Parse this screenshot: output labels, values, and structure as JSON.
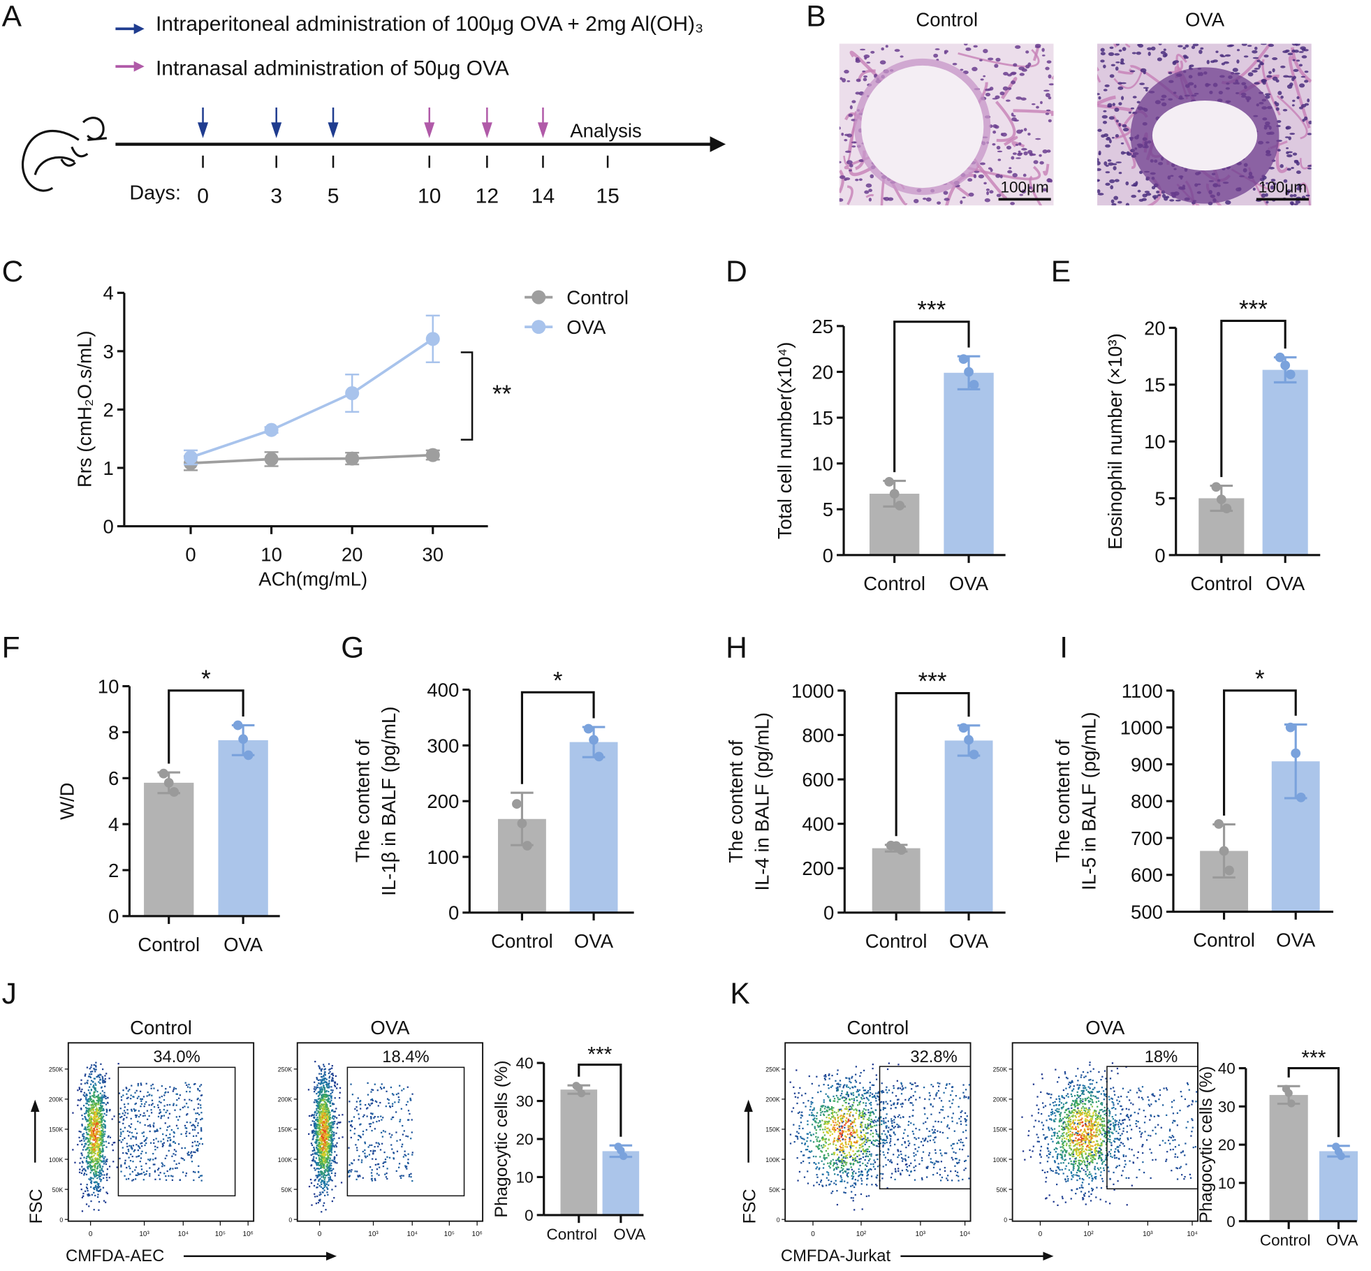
{
  "panel_labels": [
    "A",
    "B",
    "C",
    "D",
    "E",
    "F",
    "G",
    "H",
    "I",
    "J",
    "K"
  ],
  "timeline": {
    "legend_ip": "Intraperitoneal administration of 100μg OVA + 2mg Al(OH)₃",
    "legend_in": "Intranasal administration of 50μg OVA",
    "days_label": "Days:",
    "days": [
      "0",
      "3",
      "5",
      "10",
      "12",
      "14",
      "15"
    ],
    "analysis": "Analysis",
    "ip_color": "#1f3c8f",
    "in_color": "#b05aa8"
  },
  "histology": {
    "titles": [
      "Control",
      "OVA"
    ],
    "scale_bar": "100μm"
  },
  "colors": {
    "control_bar": "#b3b3b3",
    "ova_bar": "#abc5ea",
    "control_dot": "#9a9a9a",
    "ova_dot": "#7aa2dc",
    "control_line": "#9e9e9e",
    "ova_line": "#a8c3ec"
  },
  "chart_data": [
    {
      "id": "C",
      "type": "line",
      "xlabel": "ACh(mg/mL)",
      "ylabel": "Rrs (cmH₂O.s/mL)",
      "x": [
        0,
        10,
        20,
        30
      ],
      "x_ticks": [
        "0",
        "10",
        "20",
        "30"
      ],
      "ylim": [
        0,
        4
      ],
      "y_ticks": [
        "0",
        "1",
        "2",
        "3",
        "4"
      ],
      "series": [
        {
          "name": "Control",
          "values": [
            1.08,
            1.15,
            1.16,
            1.22
          ],
          "err": [
            0.12,
            0.12,
            0.1,
            0.08
          ]
        },
        {
          "name": "OVA",
          "values": [
            1.18,
            1.65,
            2.28,
            3.21
          ],
          "err": [
            0.12,
            0.05,
            0.32,
            0.4
          ]
        }
      ],
      "significance": "**",
      "legend": "top-right"
    },
    {
      "id": "D",
      "type": "bar",
      "ylabel": [
        "Total cell number(x10⁴)"
      ],
      "categories": [
        "Control",
        "OVA"
      ],
      "ylim": [
        0,
        25
      ],
      "y_ticks": [
        "0",
        "5",
        "10",
        "15",
        "20",
        "25"
      ],
      "values": [
        6.7,
        19.9
      ],
      "sd": [
        1.4,
        1.8
      ],
      "points": [
        [
          8.0,
          6.7,
          5.4
        ],
        [
          21.4,
          20.0,
          18.6
        ]
      ],
      "significance": "***"
    },
    {
      "id": "E",
      "type": "bar",
      "ylabel": [
        "Eosinophil number (×10³)"
      ],
      "categories": [
        "Control",
        "OVA"
      ],
      "ylim": [
        0,
        20
      ],
      "y_ticks": [
        "0",
        "5",
        "10",
        "15",
        "20"
      ],
      "values": [
        5.0,
        16.3
      ],
      "sd": [
        1.1,
        1.1
      ],
      "points": [
        [
          6.0,
          4.9,
          4.1
        ],
        [
          17.4,
          16.7,
          15.9
        ]
      ],
      "significance": "***"
    },
    {
      "id": "F",
      "type": "bar",
      "ylabel": [
        "W/D"
      ],
      "categories": [
        "Control",
        "OVA"
      ],
      "ylim": [
        0,
        10
      ],
      "y_ticks": [
        "0",
        "2",
        "4",
        "6",
        "8",
        "10"
      ],
      "values": [
        5.8,
        7.65
      ],
      "sd": [
        0.45,
        0.65
      ],
      "points": [
        [
          6.2,
          5.8,
          5.4
        ],
        [
          8.3,
          7.7,
          7.0
        ]
      ],
      "significance": "*"
    },
    {
      "id": "G",
      "type": "bar",
      "ylabel": [
        "The content of",
        "IL-1β in BALF (pg/mL)"
      ],
      "categories": [
        "Control",
        "OVA"
      ],
      "ylim": [
        0,
        400
      ],
      "y_ticks": [
        "0",
        "100",
        "200",
        "300",
        "400"
      ],
      "values": [
        168,
        306
      ],
      "sd": [
        47,
        27
      ],
      "points": [
        [
          195,
          160,
          120
        ],
        [
          330,
          310,
          280
        ]
      ],
      "significance": "*"
    },
    {
      "id": "H",
      "type": "bar",
      "ylabel": [
        "The content of",
        "IL-4 in BALF (pg/mL)"
      ],
      "categories": [
        "Control",
        "OVA"
      ],
      "ylim": [
        0,
        1000
      ],
      "y_ticks": [
        "0",
        "200",
        "400",
        "600",
        "800",
        "1000"
      ],
      "values": [
        290,
        775
      ],
      "sd": [
        15,
        68
      ],
      "points": [
        [
          302,
          300,
          282
        ],
        [
          832,
          778,
          712
        ]
      ],
      "significance": "***"
    },
    {
      "id": "I",
      "type": "bar",
      "ylabel": [
        "The content of",
        "IL-5 in BALF (pg/mL)"
      ],
      "categories": [
        "Control",
        "OVA"
      ],
      "ylim": [
        500,
        1100
      ],
      "y_ticks": [
        "500",
        "600",
        "700",
        "800",
        "900",
        "1000",
        "1100"
      ],
      "values": [
        665,
        908
      ],
      "sd": [
        72,
        100
      ],
      "points": [
        [
          738,
          665,
          612
        ],
        [
          1000,
          930,
          810
        ]
      ],
      "significance": "*"
    },
    {
      "id": "J",
      "type": "bar",
      "ylabel": [
        "Phagocytic cells (%)"
      ],
      "categories": [
        "Control",
        "OVA"
      ],
      "ylim": [
        0,
        40
      ],
      "y_ticks": [
        "0",
        "10",
        "20",
        "30",
        "40"
      ],
      "values": [
        33.0,
        16.8
      ],
      "sd": [
        1.1,
        1.5
      ],
      "points": [
        [
          34.0,
          33.5,
          32.0
        ],
        [
          18.0,
          17.0,
          15.5
        ]
      ],
      "significance": "***"
    },
    {
      "id": "K",
      "type": "bar",
      "ylabel": [
        "Phagocytic cells (%)"
      ],
      "categories": [
        "Control",
        "OVA"
      ],
      "ylim": [
        0,
        40
      ],
      "y_ticks": [
        "0",
        "10",
        "20",
        "30",
        "40"
      ],
      "values": [
        33.0,
        18.3
      ],
      "sd": [
        2.3,
        1.4
      ],
      "points": [
        [
          34.6,
          33.5,
          30.8
        ],
        [
          19.5,
          18.2,
          17.0
        ]
      ],
      "significance": "***"
    }
  ],
  "flow": {
    "J": {
      "x_axis": "CMFDA-AEC",
      "y_axis": "FSC",
      "y_ticks": [
        "250K",
        "200K",
        "150K",
        "100K",
        "50K",
        "0"
      ],
      "x_ticks": [
        "0",
        "10³",
        "10⁴",
        "10⁵",
        "10⁶"
      ],
      "plots": [
        {
          "title": "Control",
          "gate_percent": "34.0%"
        },
        {
          "title": "OVA",
          "gate_percent": "18.4%"
        }
      ]
    },
    "K": {
      "x_axis": "CMFDA-Jurkat",
      "y_axis": "FSC",
      "y_ticks": [
        "250K",
        "200K",
        "150K",
        "100K",
        "50K",
        "0"
      ],
      "x_ticks": [
        "0",
        "10²",
        "10³",
        "10⁴"
      ],
      "plots": [
        {
          "title": "Control",
          "gate_percent": "32.8%"
        },
        {
          "title": "OVA",
          "gate_percent": "18%"
        }
      ]
    }
  }
}
